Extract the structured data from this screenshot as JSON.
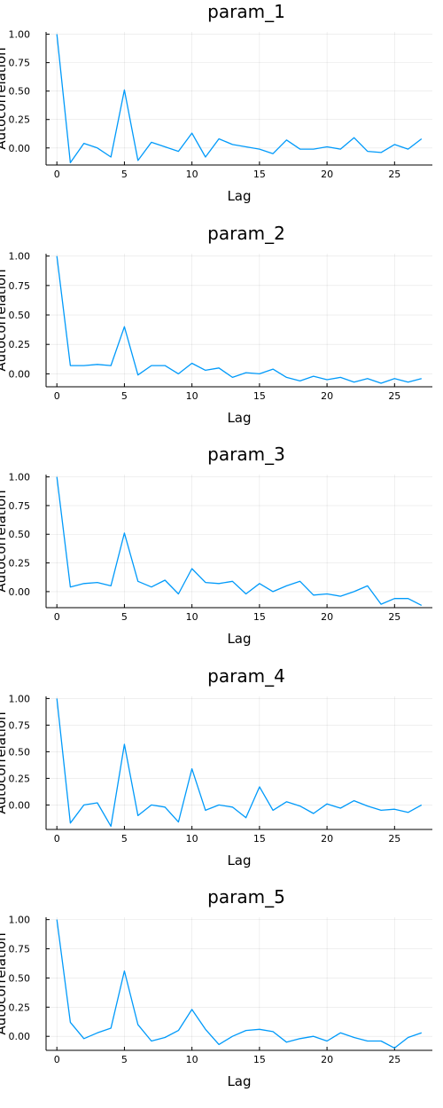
{
  "colors": {
    "series": "#009AFA",
    "axis": "#000000",
    "grid": "#000000"
  },
  "chart_data": [
    {
      "type": "line",
      "title": "param_1",
      "xlabel": "Lag",
      "ylabel": "Autocorrelation",
      "xticks": [
        0,
        5,
        10,
        15,
        20,
        25
      ],
      "yticks": [
        0.0,
        0.25,
        0.5,
        0.75,
        1.0
      ],
      "ytick_labels": [
        "0.00",
        "0.25",
        "0.50",
        "0.75",
        "1.00"
      ],
      "xlim": [
        -0.8,
        27.8
      ],
      "ylim": [
        -0.15,
        1.02
      ],
      "grid": true,
      "series": [
        {
          "x": [
            0,
            1,
            2,
            3,
            4,
            5,
            6,
            7,
            8,
            9,
            10,
            11,
            12,
            13,
            14,
            15,
            16,
            17,
            18,
            19,
            20,
            21,
            22,
            23,
            24,
            25,
            26,
            27
          ],
          "values": [
            1.0,
            -0.13,
            0.04,
            0.0,
            -0.08,
            0.51,
            -0.11,
            0.05,
            0.01,
            -0.03,
            0.13,
            -0.08,
            0.08,
            0.03,
            0.01,
            -0.01,
            -0.05,
            0.07,
            -0.01,
            -0.01,
            0.01,
            -0.01,
            0.09,
            -0.03,
            -0.04,
            0.03,
            -0.01,
            0.08
          ]
        }
      ]
    },
    {
      "type": "line",
      "title": "param_2",
      "xlabel": "Lag",
      "ylabel": "Autocorrelation",
      "xticks": [
        0,
        5,
        10,
        15,
        20,
        25
      ],
      "yticks": [
        0.0,
        0.25,
        0.5,
        0.75,
        1.0
      ],
      "ytick_labels": [
        "0.00",
        "0.25",
        "0.50",
        "0.75",
        "1.00"
      ],
      "xlim": [
        -0.8,
        27.8
      ],
      "ylim": [
        -0.11,
        1.02
      ],
      "grid": true,
      "series": [
        {
          "x": [
            0,
            1,
            2,
            3,
            4,
            5,
            6,
            7,
            8,
            9,
            10,
            11,
            12,
            13,
            14,
            15,
            16,
            17,
            18,
            19,
            20,
            21,
            22,
            23,
            24,
            25,
            26,
            27
          ],
          "values": [
            1.0,
            0.07,
            0.07,
            0.08,
            0.07,
            0.4,
            -0.01,
            0.07,
            0.07,
            0.0,
            0.09,
            0.03,
            0.05,
            -0.03,
            0.01,
            0.0,
            0.04,
            -0.03,
            -0.06,
            -0.02,
            -0.05,
            -0.03,
            -0.07,
            -0.04,
            -0.08,
            -0.04,
            -0.07,
            -0.04
          ]
        }
      ]
    },
    {
      "type": "line",
      "title": "param_3",
      "xlabel": "Lag",
      "ylabel": "Autocorrelation",
      "xticks": [
        0,
        5,
        10,
        15,
        20,
        25
      ],
      "yticks": [
        0.0,
        0.25,
        0.5,
        0.75,
        1.0
      ],
      "ytick_labels": [
        "0.00",
        "0.25",
        "0.50",
        "0.75",
        "1.00"
      ],
      "xlim": [
        -0.8,
        27.8
      ],
      "ylim": [
        -0.14,
        1.02
      ],
      "grid": true,
      "series": [
        {
          "x": [
            0,
            1,
            2,
            3,
            4,
            5,
            6,
            7,
            8,
            9,
            10,
            11,
            12,
            13,
            14,
            15,
            16,
            17,
            18,
            19,
            20,
            21,
            22,
            23,
            24,
            25,
            26,
            27
          ],
          "values": [
            1.0,
            0.04,
            0.07,
            0.08,
            0.05,
            0.51,
            0.09,
            0.04,
            0.1,
            -0.02,
            0.2,
            0.08,
            0.07,
            0.09,
            -0.02,
            0.07,
            0.0,
            0.05,
            0.09,
            -0.03,
            -0.02,
            -0.04,
            0.0,
            0.05,
            -0.11,
            -0.06,
            -0.06,
            -0.12
          ]
        }
      ]
    },
    {
      "type": "line",
      "title": "param_4",
      "xlabel": "Lag",
      "ylabel": "Autocorrelation",
      "xticks": [
        0,
        5,
        10,
        15,
        20,
        25
      ],
      "yticks": [
        0.0,
        0.25,
        0.5,
        0.75,
        1.0
      ],
      "ytick_labels": [
        "0.00",
        "0.25",
        "0.50",
        "0.75",
        "1.00"
      ],
      "xlim": [
        -0.8,
        27.8
      ],
      "ylim": [
        -0.23,
        1.02
      ],
      "grid": true,
      "series": [
        {
          "x": [
            0,
            1,
            2,
            3,
            4,
            5,
            6,
            7,
            8,
            9,
            10,
            11,
            12,
            13,
            14,
            15,
            16,
            17,
            18,
            19,
            20,
            21,
            22,
            23,
            24,
            25,
            26,
            27
          ],
          "values": [
            1.0,
            -0.17,
            0.0,
            0.02,
            -0.2,
            0.57,
            -0.1,
            0.0,
            -0.02,
            -0.16,
            0.34,
            -0.05,
            0.0,
            -0.02,
            -0.12,
            0.17,
            -0.05,
            0.03,
            -0.01,
            -0.08,
            0.01,
            -0.03,
            0.04,
            -0.01,
            -0.05,
            -0.04,
            -0.07,
            0.0
          ]
        }
      ]
    },
    {
      "type": "line",
      "title": "param_5",
      "xlabel": "Lag",
      "ylabel": "Autocorrelation",
      "xticks": [
        0,
        5,
        10,
        15,
        20,
        25
      ],
      "yticks": [
        0.0,
        0.25,
        0.5,
        0.75,
        1.0
      ],
      "ytick_labels": [
        "0.00",
        "0.25",
        "0.50",
        "0.75",
        "1.00"
      ],
      "xlim": [
        -0.8,
        27.8
      ],
      "ylim": [
        -0.12,
        1.02
      ],
      "grid": true,
      "series": [
        {
          "x": [
            0,
            1,
            2,
            3,
            4,
            5,
            6,
            7,
            8,
            9,
            10,
            11,
            12,
            13,
            14,
            15,
            16,
            17,
            18,
            19,
            20,
            21,
            22,
            23,
            24,
            25,
            26,
            27
          ],
          "values": [
            1.0,
            0.12,
            -0.02,
            0.03,
            0.07,
            0.56,
            0.1,
            -0.04,
            -0.01,
            0.05,
            0.23,
            0.06,
            -0.07,
            0.0,
            0.05,
            0.06,
            0.04,
            -0.05,
            -0.02,
            0.0,
            -0.04,
            0.03,
            -0.01,
            -0.04,
            -0.04,
            -0.1,
            -0.01,
            0.03
          ]
        }
      ]
    }
  ]
}
